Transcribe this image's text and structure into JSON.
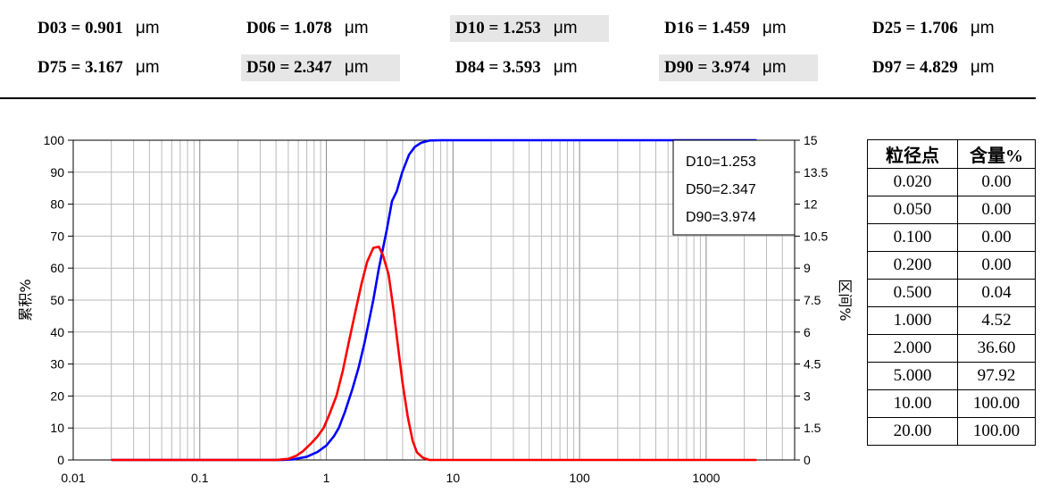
{
  "stats": [
    {
      "key": "D03 = 0.901",
      "unit": "μm",
      "highlight": false
    },
    {
      "key": "D06 = 1.078",
      "unit": "μm",
      "highlight": false
    },
    {
      "key": "D10 = 1.253",
      "unit": "μm",
      "highlight": true
    },
    {
      "key": "D16 = 1.459",
      "unit": "μm",
      "highlight": false
    },
    {
      "key": "D25 = 1.706",
      "unit": "μm",
      "highlight": false
    },
    {
      "key": "D75 = 3.167",
      "unit": "μm",
      "highlight": false
    },
    {
      "key": "D50 = 2.347",
      "unit": "μm",
      "highlight": true
    },
    {
      "key": "D84 = 3.593",
      "unit": "μm",
      "highlight": false
    },
    {
      "key": "D90 = 3.974",
      "unit": "μm",
      "highlight": true
    },
    {
      "key": "D97 = 4.829",
      "unit": "μm",
      "highlight": false
    }
  ],
  "table": {
    "headers": [
      "粒径点",
      "含量%"
    ],
    "rows": [
      [
        "0.020",
        "0.00"
      ],
      [
        "0.050",
        "0.00"
      ],
      [
        "0.100",
        "0.00"
      ],
      [
        "0.200",
        "0.00"
      ],
      [
        "0.500",
        "0.04"
      ],
      [
        "1.000",
        "4.52"
      ],
      [
        "2.000",
        "36.60"
      ],
      [
        "5.000",
        "97.92"
      ],
      [
        "10.00",
        "100.00"
      ],
      [
        "20.00",
        "100.00"
      ]
    ]
  },
  "chart_data": {
    "type": "line",
    "xscale": "log",
    "xlim": [
      0.01,
      5000
    ],
    "ylim": [
      0,
      100
    ],
    "y2lim": [
      0,
      15
    ],
    "ylabel": "累积%",
    "y2label": "区间%",
    "xticks": [
      "0.01",
      "0.1",
      "1",
      "10",
      "100",
      "1000"
    ],
    "yticks": [
      "0",
      "10",
      "20",
      "30",
      "40",
      "50",
      "60",
      "70",
      "80",
      "90",
      "100"
    ],
    "y2ticks": [
      "0",
      "1.5",
      "3",
      "4.5",
      "6",
      "7.5",
      "9",
      "10.5",
      "12",
      "13.5",
      "15"
    ],
    "legend": [
      "D10=1.253",
      "D50=2.347",
      "D90=3.974"
    ],
    "grid": true,
    "series": [
      {
        "axis": "left",
        "color": "#0000ff",
        "points": [
          [
            0.02,
            0
          ],
          [
            0.1,
            0
          ],
          [
            0.3,
            0
          ],
          [
            0.45,
            0
          ],
          [
            0.55,
            0.2
          ],
          [
            0.7,
            1.0
          ],
          [
            0.85,
            2.5
          ],
          [
            1.0,
            4.52
          ],
          [
            1.15,
            7.5
          ],
          [
            1.253,
            10
          ],
          [
            1.4,
            15
          ],
          [
            1.6,
            22
          ],
          [
            1.8,
            29
          ],
          [
            2.0,
            36.6
          ],
          [
            2.347,
            50
          ],
          [
            2.6,
            60
          ],
          [
            3.0,
            72
          ],
          [
            3.3,
            81
          ],
          [
            3.593,
            84
          ],
          [
            3.974,
            90
          ],
          [
            4.5,
            95.5
          ],
          [
            5.0,
            97.92
          ],
          [
            5.6,
            99.2
          ],
          [
            6.5,
            99.9
          ],
          [
            8,
            100
          ],
          [
            20,
            100
          ],
          [
            100,
            100
          ],
          [
            1000,
            100
          ],
          [
            2500,
            100
          ]
        ]
      },
      {
        "axis": "right",
        "color": "#ff0000",
        "points": [
          [
            0.02,
            0
          ],
          [
            0.2,
            0
          ],
          [
            0.4,
            0
          ],
          [
            0.5,
            0.05
          ],
          [
            0.58,
            0.2
          ],
          [
            0.65,
            0.4
          ],
          [
            0.75,
            0.75
          ],
          [
            0.85,
            1.1
          ],
          [
            0.95,
            1.5
          ],
          [
            1.05,
            2.1
          ],
          [
            1.2,
            3.0
          ],
          [
            1.35,
            4.2
          ],
          [
            1.5,
            5.5
          ],
          [
            1.7,
            7.0
          ],
          [
            1.9,
            8.3
          ],
          [
            2.1,
            9.3
          ],
          [
            2.35,
            9.95
          ],
          [
            2.6,
            10.0
          ],
          [
            2.8,
            9.6
          ],
          [
            3.1,
            8.7
          ],
          [
            3.4,
            7.0
          ],
          [
            3.7,
            5.2
          ],
          [
            4.0,
            3.6
          ],
          [
            4.4,
            2.0
          ],
          [
            4.8,
            0.9
          ],
          [
            5.2,
            0.35
          ],
          [
            5.8,
            0.1
          ],
          [
            6.5,
            0.0
          ],
          [
            10,
            0
          ],
          [
            100,
            0
          ],
          [
            1000,
            0
          ],
          [
            2500,
            0
          ]
        ]
      }
    ]
  }
}
